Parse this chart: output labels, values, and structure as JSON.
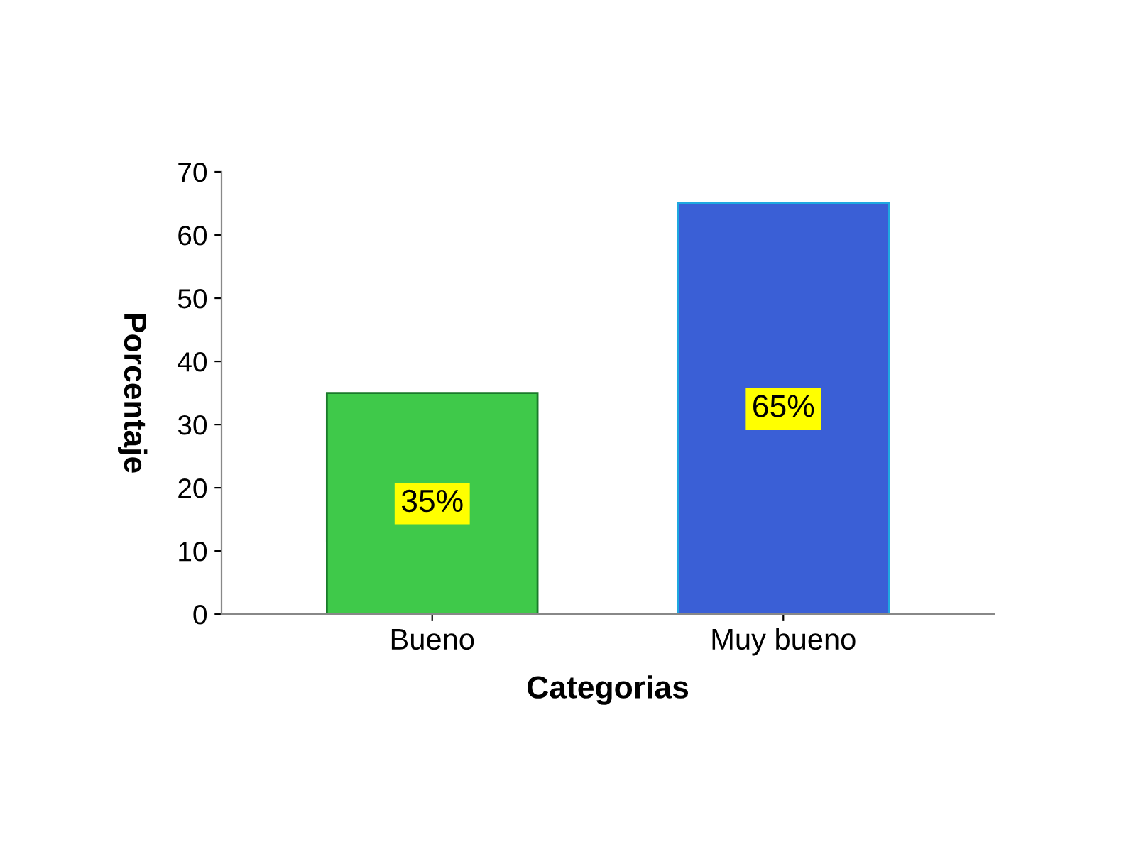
{
  "chart_data": {
    "type": "bar",
    "xlabel": "Categorias",
    "ylabel": "Porcentaje",
    "categories": [
      "Bueno",
      "Muy bueno"
    ],
    "values": [
      35,
      65
    ],
    "colors": [
      "#3fc94a",
      "#3a5fd6"
    ],
    "value_labels": [
      "35%",
      "65%"
    ],
    "ylim": [
      0,
      70
    ],
    "yticks": [
      0,
      10,
      20,
      30,
      40,
      50,
      60,
      70
    ],
    "grid": false
  }
}
